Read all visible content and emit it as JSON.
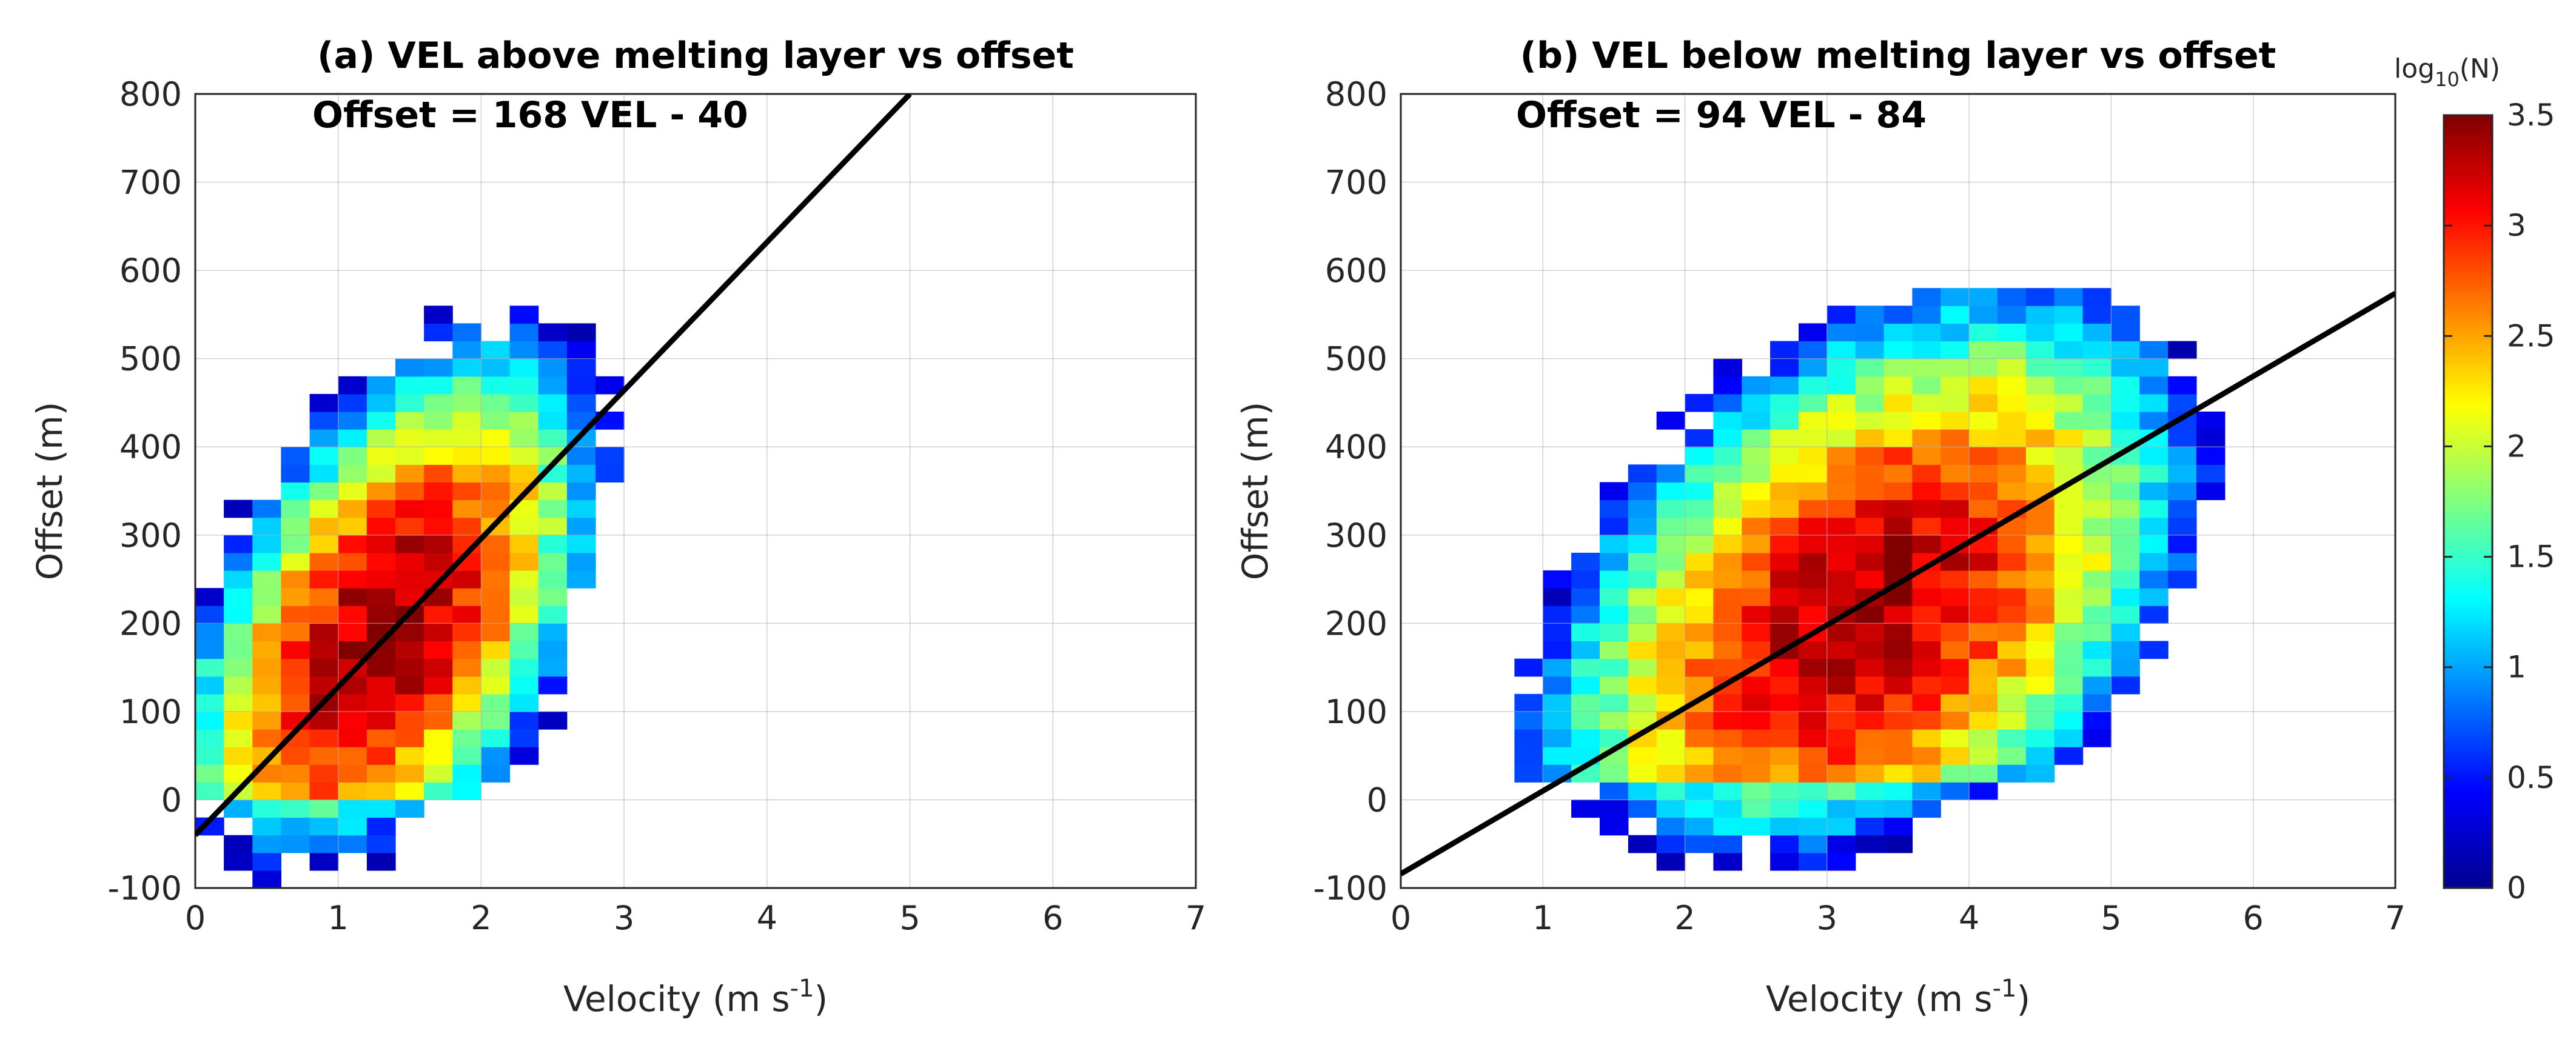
{
  "figure": {
    "colorbar": {
      "label_base": "log",
      "label_sub": "10",
      "label_var": "(N)",
      "ticks": [
        "0",
        "0.5",
        "1",
        "1.5",
        "2",
        "2.5",
        "3",
        "3.5"
      ],
      "tick_values": [
        0,
        0.5,
        1,
        1.5,
        2,
        2.5,
        3,
        3.5
      ],
      "range": [
        0,
        3.5
      ],
      "colormap": "jet"
    }
  },
  "chart_data": [
    {
      "id": "a",
      "type": "heatmap",
      "title": "(a) VEL above melting layer vs offset",
      "annotation": "Offset = 168 VEL - 40",
      "xlabel_main": "Velocity (m s",
      "xlabel_sup": "-1",
      "xlabel_end": ")",
      "ylabel": "Offset (m)",
      "xlim": [
        0,
        7
      ],
      "ylim": [
        -100,
        800
      ],
      "xticks": [
        0,
        1,
        2,
        3,
        4,
        5,
        6,
        7
      ],
      "yticks": [
        -100,
        0,
        100,
        200,
        300,
        400,
        500,
        600,
        700,
        800
      ],
      "grid": true,
      "bin_width_x": 0.2,
      "bin_width_y": 20,
      "density": {
        "center_vel": 1.3,
        "center_offset": 150,
        "slope": 168,
        "intercept": -40
      },
      "fit_line": {
        "slope": 168,
        "intercept": -40,
        "x_range": [
          0,
          5
        ]
      }
    },
    {
      "id": "b",
      "type": "heatmap",
      "title": "(b) VEL below melting layer vs offset",
      "annotation": "Offset = 94 VEL - 84",
      "xlabel_main": "Velocity (m s",
      "xlabel_sup": "-1",
      "xlabel_end": ")",
      "ylabel": "Offset (m)",
      "xlim": [
        0,
        7
      ],
      "ylim": [
        -100,
        800
      ],
      "xticks": [
        0,
        1,
        2,
        3,
        4,
        5,
        6,
        7
      ],
      "yticks": [
        -100,
        0,
        100,
        200,
        300,
        400,
        500,
        600,
        700,
        800
      ],
      "grid": true,
      "bin_width_x": 0.2,
      "bin_width_y": 20,
      "density": {
        "center_vel": 3.3,
        "center_offset": 130,
        "slope": 94,
        "intercept": -84
      },
      "fit_line": {
        "slope": 94,
        "intercept": -84,
        "x_range": [
          0,
          7
        ]
      }
    }
  ]
}
